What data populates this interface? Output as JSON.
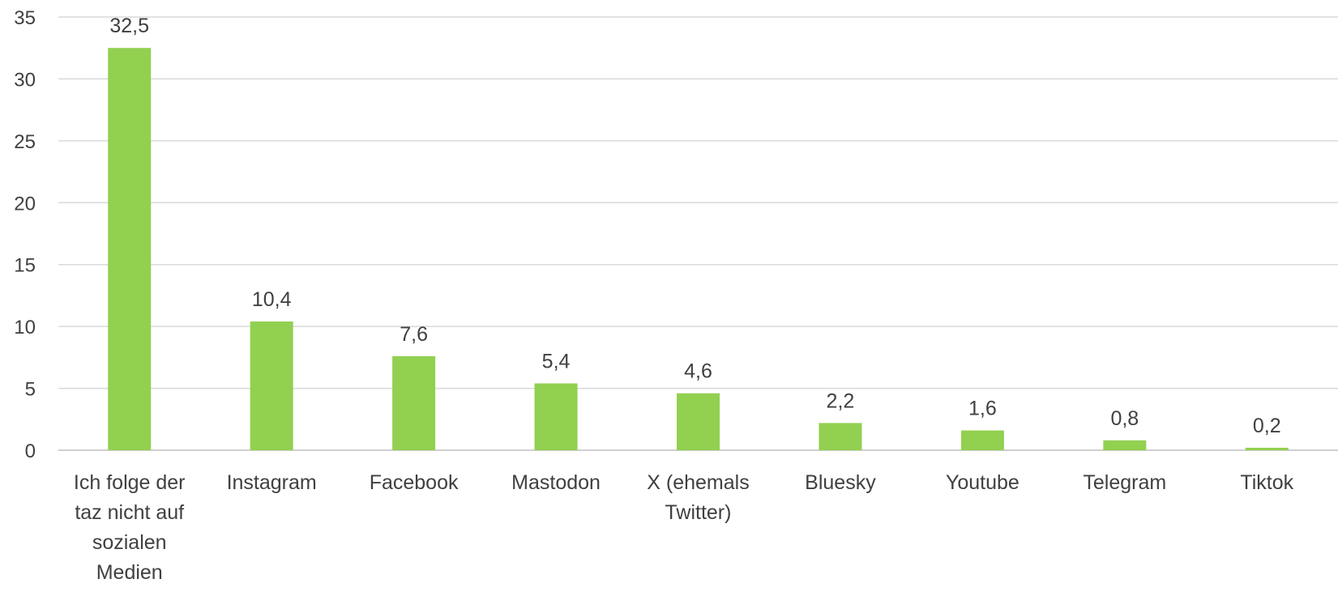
{
  "chart_data": {
    "type": "bar",
    "title": "",
    "xlabel": "",
    "ylabel": "",
    "ylim": [
      0,
      35
    ],
    "yticks": [
      0,
      5,
      10,
      15,
      20,
      25,
      30,
      35
    ],
    "grid": true,
    "legend": "none",
    "bar_color": "#92d050",
    "categories": [
      [
        "Ich folge der",
        "taz nicht auf",
        "sozialen",
        "Medien"
      ],
      [
        "Instagram"
      ],
      [
        "Facebook"
      ],
      [
        "Mastodon"
      ],
      [
        "X (ehemals",
        "Twitter)"
      ],
      [
        "Bluesky"
      ],
      [
        "Youtube"
      ],
      [
        "Telegram"
      ],
      [
        "Tiktok"
      ]
    ],
    "values": [
      32.5,
      10.4,
      7.6,
      5.4,
      4.6,
      2.2,
      1.6,
      0.8,
      0.2
    ],
    "value_labels": [
      "32,5",
      "10,4",
      "7,6",
      "5,4",
      "4,6",
      "2,2",
      "1,6",
      "0,8",
      "0,2"
    ]
  }
}
